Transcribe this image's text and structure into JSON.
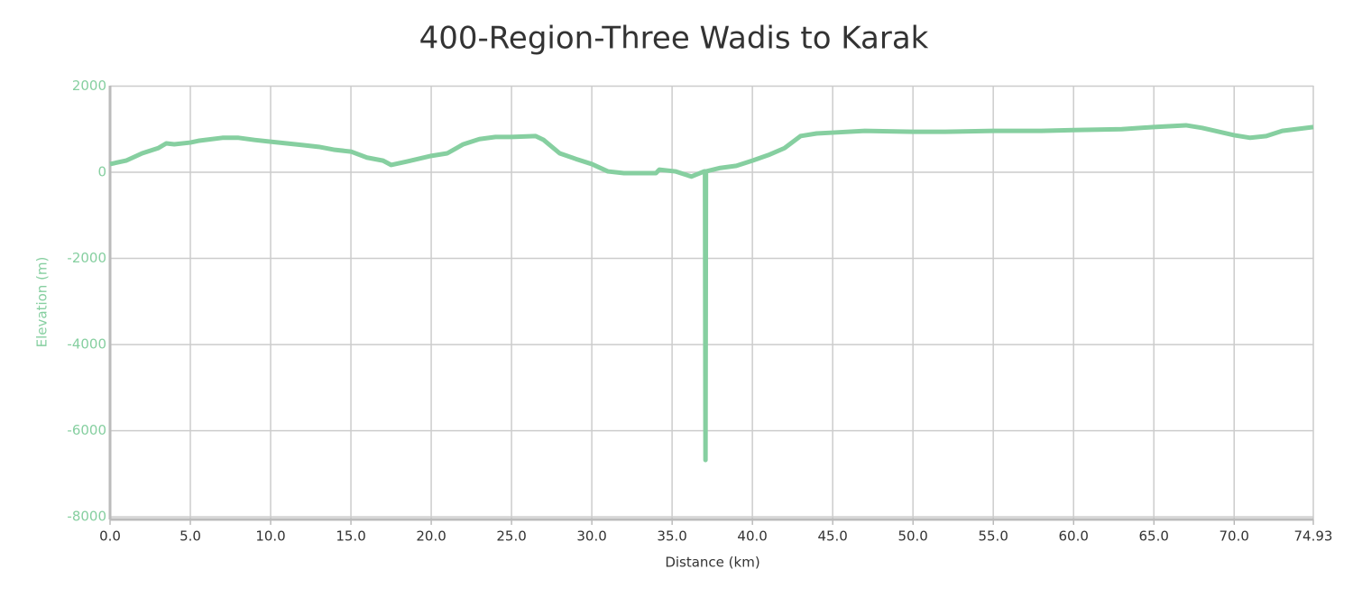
{
  "chart_data": {
    "type": "line",
    "title": "400-Region-Three Wadis to Karak",
    "x_label": "Distance (km)",
    "y_label": "Elevation (m)",
    "x": [
      0,
      1,
      2,
      3,
      3.5,
      4,
      5,
      5.5,
      7,
      8,
      9,
      10,
      11,
      12,
      13,
      14,
      15,
      16,
      17,
      17.5,
      18.5,
      20,
      21,
      22,
      23,
      24,
      25,
      26.5,
      27,
      28,
      29,
      30,
      31,
      32,
      34,
      34.2,
      35.2,
      36.2,
      37,
      37.05,
      37.08,
      37.11,
      38,
      39,
      40,
      41,
      42,
      43,
      44,
      45,
      47,
      50,
      52,
      55,
      58,
      60,
      63,
      65,
      67,
      68,
      70,
      71,
      72,
      73,
      74.93
    ],
    "series": [
      {
        "name": "Elevation",
        "color": "#86cfa0",
        "values": [
          190,
          270,
          440,
          560,
          670,
          650,
          690,
          730,
          800,
          800,
          750,
          710,
          670,
          630,
          590,
          520,
          480,
          340,
          270,
          170,
          250,
          380,
          440,
          650,
          770,
          820,
          820,
          840,
          750,
          440,
          310,
          190,
          20,
          -20,
          -20,
          60,
          20,
          -100,
          20,
          20,
          -6680,
          20,
          100,
          150,
          270,
          400,
          560,
          840,
          900,
          920,
          960,
          940,
          940,
          960,
          960,
          980,
          1000,
          1050,
          1090,
          1030,
          860,
          800,
          840,
          960,
          1050
        ]
      }
    ],
    "xlim": [
      0,
      74.93
    ],
    "ylim": [
      -8060,
      2010
    ],
    "xticks": [
      {
        "value": 0,
        "label": "0.0"
      },
      {
        "value": 5,
        "label": "5.0"
      },
      {
        "value": 10,
        "label": "10.0"
      },
      {
        "value": 15,
        "label": "15.0"
      },
      {
        "value": 20,
        "label": "20.0"
      },
      {
        "value": 25,
        "label": "25.0"
      },
      {
        "value": 30,
        "label": "30.0"
      },
      {
        "value": 35,
        "label": "35.0"
      },
      {
        "value": 40,
        "label": "40.0"
      },
      {
        "value": 45,
        "label": "45.0"
      },
      {
        "value": 50,
        "label": "50.0"
      },
      {
        "value": 55,
        "label": "55.0"
      },
      {
        "value": 60,
        "label": "60.0"
      },
      {
        "value": 65,
        "label": "65.0"
      },
      {
        "value": 70,
        "label": "70.0"
      },
      74.93
    ],
    "yticks": [
      2000,
      0,
      -2000,
      -4000,
      -6000,
      -8000
    ],
    "grid": true
  }
}
